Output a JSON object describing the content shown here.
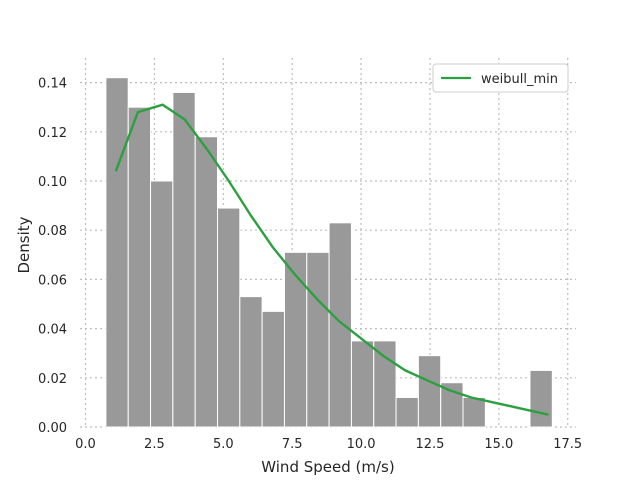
{
  "chart_data": {
    "type": "bar",
    "title": "",
    "xlabel": "Wind Speed (m/s)",
    "ylabel": "Density",
    "xlim": [
      -0.2,
      17.8
    ],
    "ylim": [
      0,
      0.15
    ],
    "xticks": [
      0.0,
      2.5,
      5.0,
      7.5,
      10.0,
      12.5,
      15.0,
      17.5
    ],
    "xtick_labels": [
      "0.0",
      "2.5",
      "5.0",
      "7.5",
      "10.0",
      "12.5",
      "15.0",
      "17.5"
    ],
    "yticks": [
      0.0,
      0.02,
      0.04,
      0.06,
      0.08,
      0.1,
      0.12,
      0.14
    ],
    "ytick_labels": [
      "0.00",
      "0.02",
      "0.04",
      "0.06",
      "0.08",
      "0.10",
      "0.12",
      "0.14"
    ],
    "grid": true,
    "legend_position": "top-right",
    "bar_color": "#999999",
    "histogram": {
      "bin_edges": [
        0.74,
        1.55,
        2.36,
        3.17,
        3.98,
        4.79,
        5.6,
        6.41,
        7.22,
        8.03,
        8.84,
        9.65,
        10.46,
        11.27,
        12.08,
        12.89,
        13.7,
        14.51,
        15.32,
        16.13,
        16.94
      ],
      "values": [
        0.142,
        0.13,
        0.1,
        0.136,
        0.118,
        0.089,
        0.053,
        0.047,
        0.071,
        0.071,
        0.083,
        0.035,
        0.035,
        0.012,
        0.029,
        0.018,
        0.012,
        0,
        0,
        0.023
      ]
    },
    "series": [
      {
        "name": "weibull_min",
        "color": "#2ca040",
        "x": [
          1.1,
          1.9,
          2.8,
          3.6,
          4.4,
          5.2,
          6.0,
          6.8,
          7.6,
          8.4,
          9.2,
          10.0,
          10.8,
          11.6,
          12.4,
          13.2,
          14.0,
          14.8,
          15.6,
          16.4,
          16.8
        ],
        "y": [
          0.104,
          0.128,
          0.131,
          0.125,
          0.113,
          0.1,
          0.086,
          0.073,
          0.062,
          0.052,
          0.043,
          0.036,
          0.029,
          0.023,
          0.019,
          0.015,
          0.012,
          0.01,
          0.008,
          0.006,
          0.005
        ]
      }
    ]
  }
}
